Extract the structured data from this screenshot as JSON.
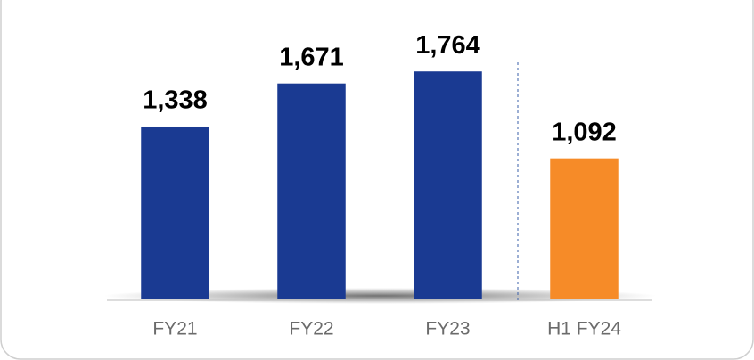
{
  "chart_data": {
    "type": "bar",
    "categories": [
      "FY21",
      "FY22",
      "FY23",
      "H1 FY24"
    ],
    "values": [
      1338,
      1671,
      1764,
      1092
    ],
    "value_labels": [
      "1,338",
      "1,671",
      "1,764",
      "1,092"
    ],
    "colors": [
      "#1a3a92",
      "#1a3a92",
      "#1a3a92",
      "#f68b28"
    ],
    "ylim": [
      0,
      2000
    ]
  }
}
